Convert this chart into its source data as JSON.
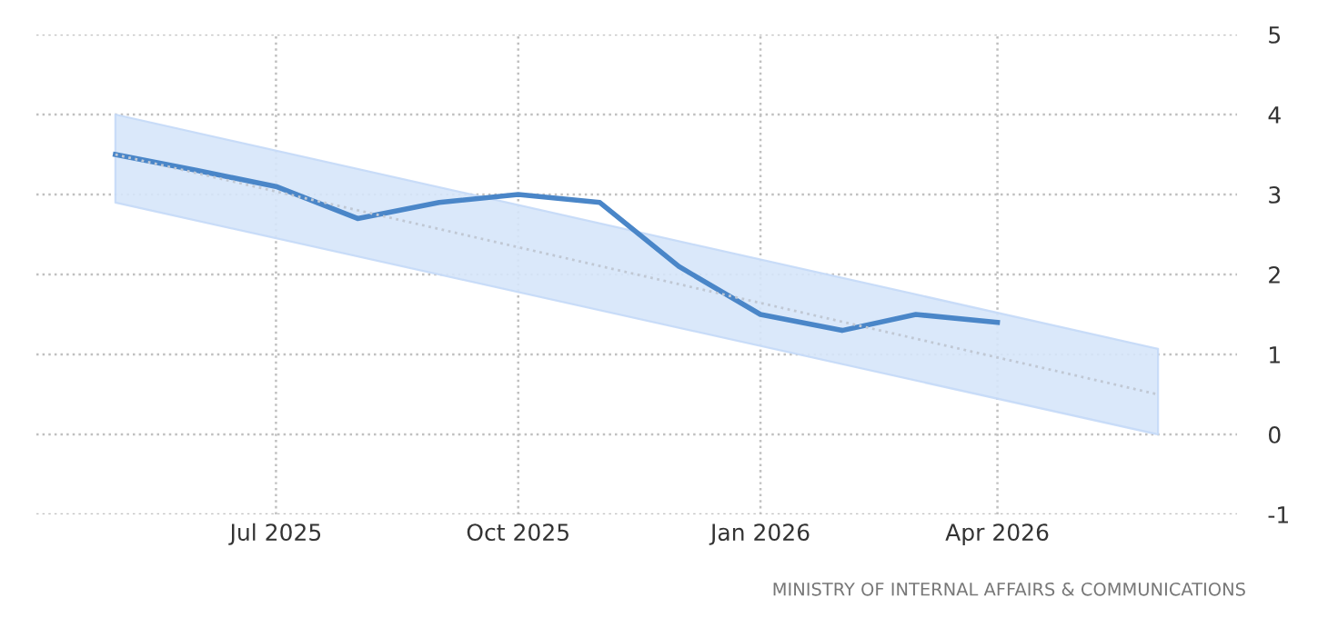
{
  "chart_data": {
    "type": "line",
    "x": [
      "2025-05",
      "2025-06",
      "2025-07",
      "2025-08",
      "2025-09",
      "2025-10",
      "2025-11",
      "2025-12",
      "2026-01",
      "2026-02",
      "2026-03",
      "2026-04"
    ],
    "series": [
      {
        "color": "#4a86c8",
        "values": [
          3.5,
          3.3,
          3.1,
          2.7,
          2.9,
          3.0,
          2.9,
          2.1,
          1.5,
          1.3,
          1.5,
          1.4
        ],
        "line_style": "solid"
      },
      {
        "color": "#c0c8d4",
        "x": [
          "2025-05",
          "2026-06"
        ],
        "values": [
          3.5,
          0.5
        ],
        "line_style": "dotted"
      },
      {
        "color": "#d6e5fa",
        "x": [
          "2025-05",
          "2026-06"
        ],
        "values": [
          null,
          null
        ],
        "lower": [
          2.9,
          0.0
        ],
        "upper": [
          4.0,
          1.07
        ]
      }
    ],
    "xlim": [
      "2025-04",
      "2026-07"
    ],
    "xticks": [
      {
        "value": "2025-07",
        "label": "Jul 2025"
      },
      {
        "value": "2025-10",
        "label": "Oct 2025"
      },
      {
        "value": "2026-01",
        "label": "Jan 2026"
      },
      {
        "value": "2026-04",
        "label": "Apr 2026"
      }
    ],
    "ylim": [
      -1,
      5
    ],
    "yticks": [
      -1,
      0,
      1,
      2,
      3,
      4,
      5
    ],
    "grid": true,
    "legend": false,
    "annotations": [
      "MINISTRY OF INTERNAL AFFAIRS & COMMUNICATIONS"
    ]
  }
}
